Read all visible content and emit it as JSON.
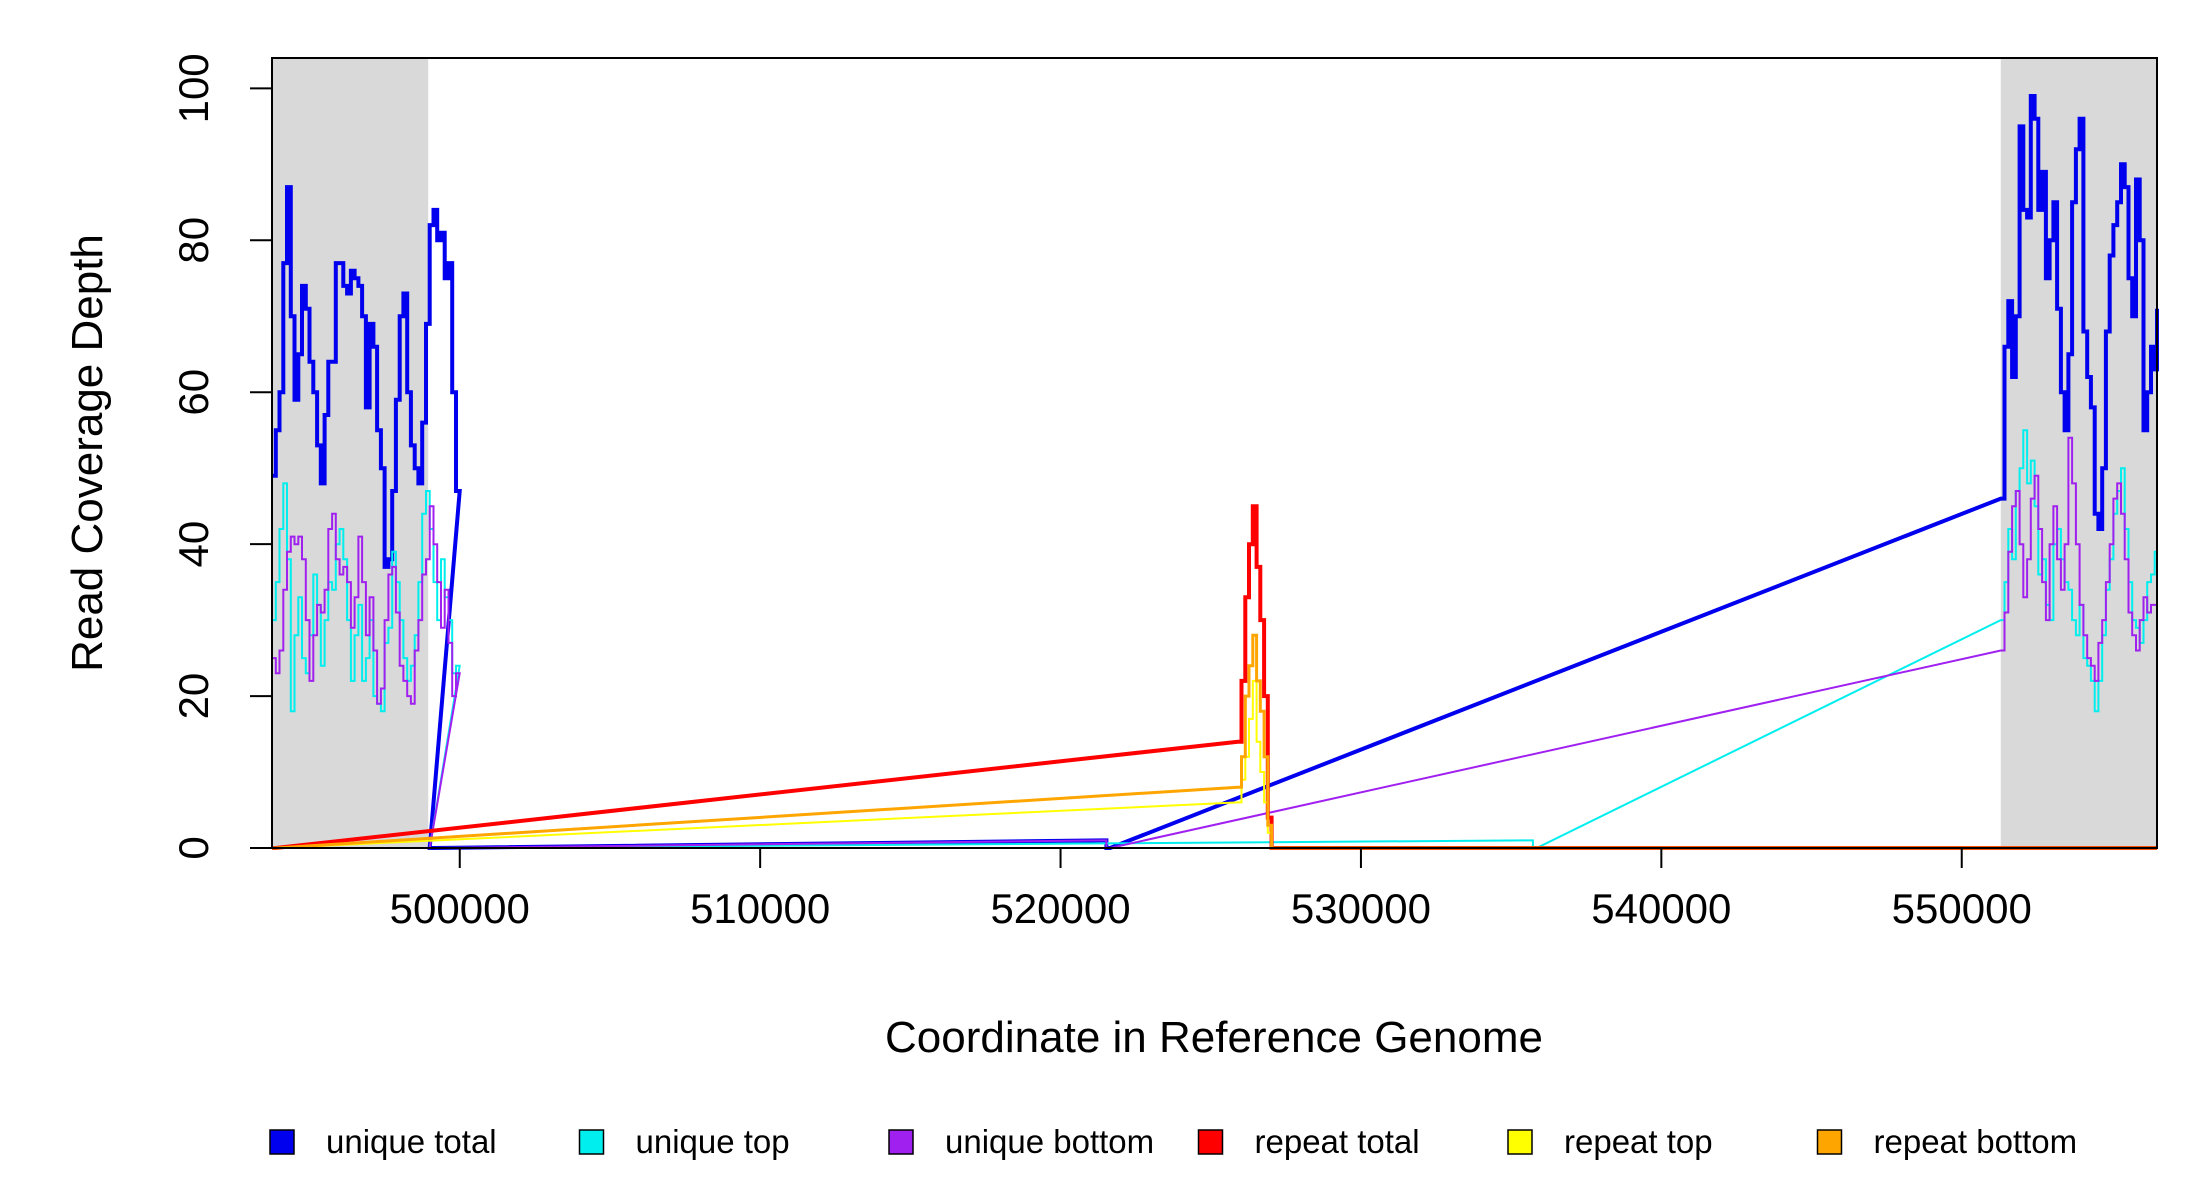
{
  "chart_data": {
    "type": "line",
    "xlabel": "Coordinate in Reference Genome",
    "ylabel": "Read Coverage Depth",
    "xlim": [
      493750,
      556500
    ],
    "ylim": [
      0,
      104
    ],
    "x_ticks": [
      500000,
      510000,
      520000,
      530000,
      540000,
      550000
    ],
    "x_tick_labels": [
      "500000",
      "510000",
      "520000",
      "530000",
      "540000",
      "550000"
    ],
    "y_ticks": [
      0,
      20,
      40,
      60,
      80,
      100
    ],
    "y_tick_labels": [
      "0",
      "20",
      "40",
      "60",
      "80",
      "100"
    ],
    "grid": false,
    "legend_position": "bottom",
    "shaded_regions": [
      {
        "start": 493750,
        "end": 498950,
        "color": "#d9d9d9"
      },
      {
        "start": 551300,
        "end": 556500,
        "color": "#d9d9d9"
      }
    ],
    "series": [
      {
        "name": "unique total",
        "color": "#0000ee",
        "step": 125,
        "segments": [
          {
            "start": 493750,
            "values": [
              49,
              55,
              60,
              77,
              87,
              70,
              59,
              65,
              74,
              71,
              64,
              60,
              53,
              48,
              57,
              64,
              64,
              77,
              77,
              74,
              73,
              76,
              75,
              74,
              70,
              58,
              69,
              66,
              55,
              50,
              37,
              38,
              47,
              59,
              70,
              73,
              60,
              53,
              50,
              48,
              56,
              69,
              82,
              84,
              80,
              81,
              75,
              77,
              60,
              47
            ]
          },
          {
            "start": 499000,
            "values": [
              0
            ]
          },
          {
            "start": 521400,
            "values": [
              1
            ]
          },
          {
            "start": 521525,
            "values": [
              0
            ]
          },
          {
            "start": 551300,
            "values": [
              46,
              66,
              72,
              62,
              70,
              95,
              84,
              83,
              99,
              96,
              84,
              89,
              75,
              80,
              85,
              71,
              60,
              55,
              65,
              85,
              92,
              96,
              68,
              62,
              58,
              44,
              42,
              50,
              68,
              78,
              82,
              85,
              90,
              87,
              75,
              70,
              88,
              80,
              55,
              60,
              66,
              63,
              69,
              71
            ]
          }
        ]
      },
      {
        "name": "unique top",
        "color": "#00eeee",
        "step": 125,
        "segments": [
          {
            "start": 493750,
            "values": [
              30,
              35,
              42,
              48,
              38,
              18,
              28,
              33,
              25,
              23,
              28,
              36,
              32,
              24,
              30,
              35,
              34,
              40,
              42,
              38,
              30,
              22,
              28,
              32,
              22,
              25,
              30,
              20,
              19,
              18,
              27,
              29,
              39,
              35,
              30,
              25,
              22,
              24,
              28,
              35,
              44,
              47,
              42,
              35,
              30,
              38,
              33,
              30,
              23,
              24
            ]
          },
          {
            "start": 499000,
            "values": [
              0
            ]
          },
          {
            "start": 535600,
            "values": [
              1
            ]
          },
          {
            "start": 535725,
            "values": [
              0
            ]
          },
          {
            "start": 551300,
            "values": [
              30,
              35,
              42,
              38,
              47,
              50,
              55,
              48,
              51,
              45,
              36,
              38,
              32,
              30,
              40,
              42,
              38,
              35,
              34,
              30,
              28,
              32,
              25,
              24,
              22,
              18,
              22,
              28,
              34,
              38,
              44,
              47,
              50,
              42,
              35,
              30,
              29,
              27,
              30,
              35,
              36,
              39
            ]
          }
        ]
      },
      {
        "name": "unique bottom",
        "color": "#a020f0",
        "step": 125,
        "segments": [
          {
            "start": 493750,
            "values": [
              25,
              23,
              26,
              34,
              39,
              41,
              40,
              41,
              38,
              30,
              22,
              28,
              32,
              31,
              34,
              42,
              44,
              38,
              36,
              37,
              35,
              29,
              33,
              41,
              35,
              28,
              33,
              26,
              19,
              21,
              30,
              36,
              37,
              31,
              24,
              22,
              20,
              19,
              26,
              30,
              36,
              38,
              45,
              40,
              35,
              29,
              34,
              27,
              20,
              23
            ]
          },
          {
            "start": 499000,
            "values": [
              0
            ]
          },
          {
            "start": 521400,
            "values": [
              1
            ]
          },
          {
            "start": 521525,
            "values": [
              0
            ]
          },
          {
            "start": 551300,
            "values": [
              26,
              31,
              39,
              45,
              47,
              40,
              33,
              38,
              46,
              49,
              42,
              35,
              30,
              40,
              45,
              38,
              34,
              40,
              54,
              48,
              40,
              32,
              28,
              25,
              24,
              22,
              27,
              30,
              35,
              40,
              46,
              48,
              44,
              38,
              31,
              28,
              26,
              30,
              33,
              31,
              32
            ]
          }
        ]
      },
      {
        "name": "repeat total",
        "color": "#ff0000",
        "step": 125,
        "segments": [
          {
            "start": 493750,
            "values": [
              0
            ]
          },
          {
            "start": 525900,
            "values": [
              14,
              22,
              33,
              40,
              45,
              37,
              30,
              20,
              4
            ]
          },
          {
            "start": 527025,
            "values": [
              0
            ]
          }
        ]
      },
      {
        "name": "repeat top",
        "color": "#ffff00",
        "step": 125,
        "segments": [
          {
            "start": 493750,
            "values": [
              0
            ]
          },
          {
            "start": 525900,
            "values": [
              6,
              9,
              12,
              17,
              22,
              14,
              10,
              6,
              2
            ]
          },
          {
            "start": 527025,
            "values": [
              0
            ]
          }
        ]
      },
      {
        "name": "repeat bottom",
        "color": "#ffa500",
        "step": 125,
        "segments": [
          {
            "start": 493750,
            "values": [
              0
            ]
          },
          {
            "start": 525900,
            "values": [
              8,
              12,
              20,
              24,
              28,
              22,
              18,
              12,
              3
            ]
          },
          {
            "start": 527025,
            "values": [
              0
            ]
          }
        ]
      }
    ]
  }
}
